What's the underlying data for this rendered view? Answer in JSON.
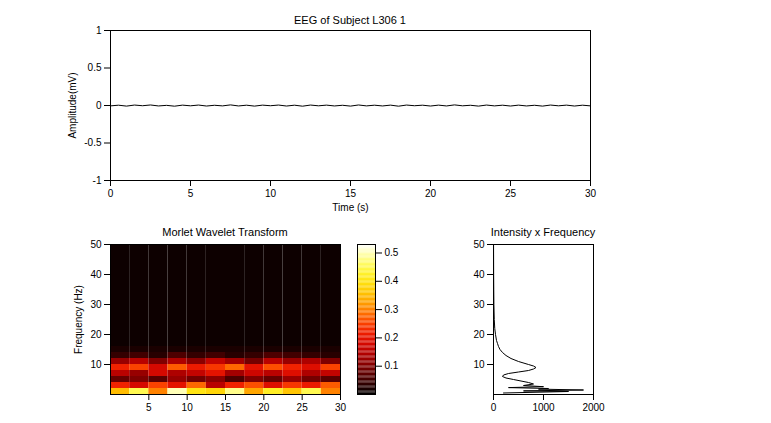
{
  "chart_data": [
    {
      "type": "line",
      "title": "EEG of Subject L306 1",
      "x_label": "Time (s)",
      "y_label": "Amplitude(mV)",
      "xlim": [
        0,
        30
      ],
      "xticks": [
        0,
        5,
        10,
        15,
        20,
        25,
        30
      ],
      "ylim": [
        -1,
        1
      ],
      "yticks": [
        -1,
        -0.5,
        0,
        0.5,
        1
      ],
      "x": [
        0,
        0.5,
        1,
        1.5,
        2,
        2.5,
        3,
        3.5,
        4,
        4.5,
        5,
        5.5,
        6,
        6.5,
        7,
        7.5,
        8,
        8.5,
        9,
        9.5,
        10,
        10.5,
        11,
        11.5,
        12,
        12.5,
        13,
        13.5,
        14,
        14.5,
        15,
        15.5,
        16,
        16.5,
        17,
        17.5,
        18,
        18.5,
        19,
        19.5,
        20,
        20.5,
        21,
        21.5,
        22,
        22.5,
        23,
        23.5,
        24,
        24.5,
        25,
        25.5,
        26,
        26.5,
        27,
        27.5,
        28,
        28.5,
        29,
        29.5,
        30
      ],
      "series": [
        {
          "color": "#000000",
          "values": [
            -0.005,
            0.004,
            -0.008,
            0.006,
            -0.003,
            0.007,
            -0.006,
            0.002,
            -0.009,
            0.005,
            -0.004,
            0.006,
            -0.007,
            0.003,
            -0.005,
            0.008,
            -0.006,
            0.004,
            -0.008,
            0.005,
            -0.003,
            0.006,
            -0.007,
            0.004,
            -0.009,
            0.006,
            -0.004,
            0.005,
            -0.006,
            0.003,
            -0.008,
            0.007,
            -0.005,
            0.004,
            -0.006,
            0.005,
            -0.009,
            0.006,
            -0.003,
            0.004,
            -0.007,
            0.005,
            -0.006,
            0.008,
            -0.004,
            0.003,
            -0.008,
            0.006,
            -0.005,
            0.004,
            -0.007,
            0.005,
            -0.006,
            0.003,
            -0.008,
            0.006,
            -0.004,
            0.005,
            -0.007,
            0.004,
            -0.005
          ]
        }
      ]
    },
    {
      "type": "heatmap",
      "title": "Morlet Wavelet Transform",
      "y_label": "Frequency (Hz)",
      "xlim": [
        0,
        30
      ],
      "xticks": [
        5,
        10,
        15,
        20,
        25,
        30
      ],
      "ylim": [
        0,
        50
      ],
      "yticks": [
        10,
        20,
        30,
        40,
        50
      ],
      "x_bins": [
        0,
        2.5,
        5,
        7.5,
        10,
        12.5,
        15,
        17.5,
        20,
        22.5,
        25,
        27.5,
        30
      ],
      "y_bins": [
        0,
        2,
        4,
        6,
        8,
        10,
        12,
        14,
        16,
        18,
        20,
        22,
        24,
        26,
        28,
        30,
        32,
        34,
        36,
        38,
        40,
        42,
        44,
        46,
        48,
        50
      ],
      "cells": [
        [
          0.35,
          0.45,
          0.3,
          0.5,
          0.4,
          0.38,
          0.48,
          0.33,
          0.42,
          0.36,
          0.45,
          0.3
        ],
        [
          0.22,
          0.18,
          0.25,
          0.2,
          0.28,
          0.15,
          0.22,
          0.26,
          0.19,
          0.24,
          0.21,
          0.27
        ],
        [
          0.08,
          0.1,
          0.07,
          0.12,
          0.09,
          0.11,
          0.06,
          0.1,
          0.08,
          0.12,
          0.09,
          0.07
        ],
        [
          0.15,
          0.12,
          0.18,
          0.14,
          0.16,
          0.2,
          0.13,
          0.17,
          0.15,
          0.19,
          0.14,
          0.16
        ],
        [
          0.22,
          0.25,
          0.18,
          0.27,
          0.21,
          0.24,
          0.28,
          0.2,
          0.26,
          0.22,
          0.19,
          0.25
        ],
        [
          0.12,
          0.15,
          0.1,
          0.14,
          0.11,
          0.16,
          0.13,
          0.09,
          0.15,
          0.12,
          0.14,
          0.1
        ],
        [
          0.04,
          0.05,
          0.03,
          0.06,
          0.04,
          0.05,
          0.03,
          0.04,
          0.06,
          0.05,
          0.04,
          0.03
        ],
        [
          0.02,
          0.02,
          0.02,
          0.02,
          0.02,
          0.02,
          0.02,
          0.02,
          0.02,
          0.02,
          0.02,
          0.02
        ],
        [
          0.01,
          0.01,
          0.01,
          0.01,
          0.01,
          0.01,
          0.01,
          0.01,
          0.01,
          0.01,
          0.01,
          0.01
        ],
        [
          0.01,
          0.01,
          0.01,
          0.01,
          0.01,
          0.01,
          0.01,
          0.01,
          0.01,
          0.01,
          0.01,
          0.01
        ],
        [
          0.01,
          0.01,
          0.01,
          0.01,
          0.01,
          0.01,
          0.01,
          0.01,
          0.01,
          0.01,
          0.01,
          0.01
        ],
        [
          0.01,
          0.01,
          0.01,
          0.01,
          0.01,
          0.01,
          0.01,
          0.01,
          0.01,
          0.01,
          0.01,
          0.01
        ],
        [
          0.01,
          0.01,
          0.01,
          0.01,
          0.01,
          0.01,
          0.01,
          0.01,
          0.01,
          0.01,
          0.01,
          0.01
        ],
        [
          0.01,
          0.01,
          0.01,
          0.01,
          0.01,
          0.01,
          0.01,
          0.01,
          0.01,
          0.01,
          0.01,
          0.01
        ],
        [
          0.01,
          0.01,
          0.01,
          0.01,
          0.01,
          0.01,
          0.01,
          0.01,
          0.01,
          0.01,
          0.01,
          0.01
        ],
        [
          0.01,
          0.01,
          0.01,
          0.01,
          0.01,
          0.01,
          0.01,
          0.01,
          0.01,
          0.01,
          0.01,
          0.01
        ],
        [
          0.01,
          0.01,
          0.01,
          0.01,
          0.01,
          0.01,
          0.01,
          0.01,
          0.01,
          0.01,
          0.01,
          0.01
        ],
        [
          0.01,
          0.01,
          0.01,
          0.01,
          0.01,
          0.01,
          0.01,
          0.01,
          0.01,
          0.01,
          0.01,
          0.01
        ],
        [
          0.01,
          0.01,
          0.01,
          0.01,
          0.01,
          0.01,
          0.01,
          0.01,
          0.01,
          0.01,
          0.01,
          0.01
        ],
        [
          0.01,
          0.01,
          0.01,
          0.01,
          0.01,
          0.01,
          0.01,
          0.01,
          0.01,
          0.01,
          0.01,
          0.01
        ],
        [
          0.01,
          0.01,
          0.01,
          0.01,
          0.01,
          0.01,
          0.01,
          0.01,
          0.01,
          0.01,
          0.01,
          0.01
        ],
        [
          0.01,
          0.01,
          0.01,
          0.01,
          0.01,
          0.01,
          0.01,
          0.01,
          0.01,
          0.01,
          0.01,
          0.01
        ],
        [
          0.01,
          0.01,
          0.01,
          0.01,
          0.01,
          0.01,
          0.01,
          0.01,
          0.01,
          0.01,
          0.01,
          0.01
        ],
        [
          0.01,
          0.01,
          0.01,
          0.01,
          0.01,
          0.01,
          0.01,
          0.01,
          0.01,
          0.01,
          0.01,
          0.01
        ],
        [
          0.01,
          0.01,
          0.01,
          0.01,
          0.01,
          0.01,
          0.01,
          0.01,
          0.01,
          0.01,
          0.01,
          0.01
        ]
      ],
      "colorbar": {
        "range": [
          0,
          0.53
        ],
        "ticks": [
          0.1,
          0.2,
          0.3,
          0.4,
          0.5
        ]
      }
    },
    {
      "type": "line",
      "title": "Intensity x Frequency",
      "xlim": [
        0,
        2000
      ],
      "xticks": [
        0,
        1000,
        2000
      ],
      "ylim": [
        0,
        50
      ],
      "yticks": [
        10,
        20,
        30,
        40,
        50
      ],
      "color": "#000000",
      "x": [
        200,
        1500,
        600,
        1800,
        900,
        1100,
        300,
        1000,
        600,
        800,
        700,
        550,
        400,
        250,
        180,
        200,
        300,
        500,
        700,
        800,
        850,
        800,
        700,
        500,
        350,
        250,
        180,
        130,
        100,
        80,
        60,
        40,
        25,
        15,
        8,
        5,
        3,
        2,
        1
      ],
      "y": [
        0.5,
        1,
        1.2,
        1.5,
        1.8,
        2,
        2.3,
        2.6,
        3,
        3.5,
        4,
        4.5,
        5,
        5.5,
        6,
        6.5,
        7,
        7.5,
        8,
        8.5,
        9,
        9.5,
        10,
        11,
        12,
        13,
        14,
        15,
        16,
        17,
        18,
        20,
        22,
        25,
        30,
        35,
        40,
        45,
        50
      ]
    }
  ]
}
